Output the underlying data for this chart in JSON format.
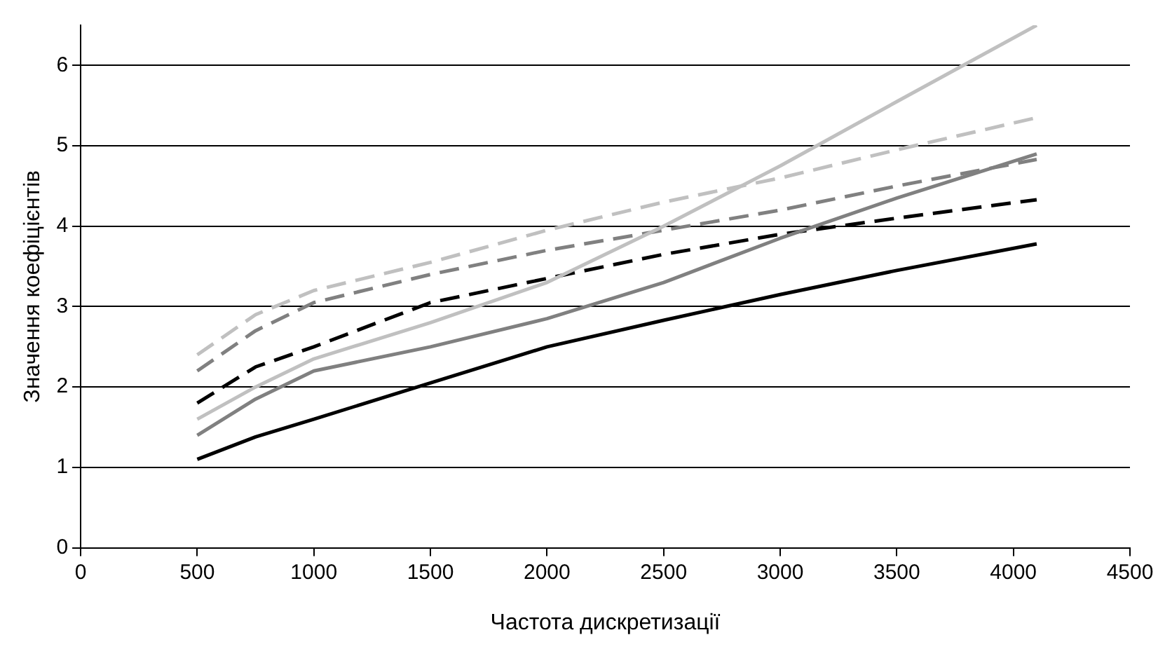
{
  "chart_data": {
    "type": "line",
    "xlabel": "Частота дискретизації",
    "ylabel": "Значення коефіцієнтів",
    "xlim": [
      0,
      4500
    ],
    "xticks": [
      0,
      500,
      1000,
      1500,
      2000,
      2500,
      3000,
      3500,
      4000,
      4500
    ],
    "ylim": [
      0,
      6.5
    ],
    "yticks": [
      0,
      1,
      2,
      3,
      4,
      5,
      6
    ],
    "grid": "y",
    "legend": false,
    "marker": "none",
    "x": [
      500,
      750,
      1000,
      1500,
      2000,
      2500,
      3000,
      3500,
      4100
    ],
    "series": [
      {
        "color": "#000000",
        "line_style": "solid",
        "values": [
          1.1,
          1.38,
          1.6,
          2.05,
          2.5,
          2.83,
          3.15,
          3.45,
          3.78
        ]
      },
      {
        "color": "#808080",
        "line_style": "solid",
        "values": [
          1.4,
          1.85,
          2.2,
          2.5,
          2.85,
          3.3,
          3.85,
          4.35,
          4.9
        ]
      },
      {
        "color": "#c0c0c0",
        "line_style": "solid",
        "values": [
          1.6,
          2.0,
          2.35,
          2.8,
          3.3,
          4.0,
          4.75,
          5.55,
          6.5
        ]
      },
      {
        "color": "#000000",
        "line_style": "dashed",
        "values": [
          1.8,
          2.25,
          2.5,
          3.05,
          3.35,
          3.65,
          3.9,
          4.1,
          4.33
        ]
      },
      {
        "color": "#808080",
        "line_style": "dashed",
        "values": [
          2.2,
          2.7,
          3.05,
          3.4,
          3.7,
          3.95,
          4.2,
          4.5,
          4.83
        ]
      },
      {
        "color": "#c0c0c0",
        "line_style": "dashed",
        "values": [
          2.4,
          2.9,
          3.2,
          3.55,
          3.95,
          4.3,
          4.6,
          4.95,
          5.35
        ]
      }
    ]
  }
}
